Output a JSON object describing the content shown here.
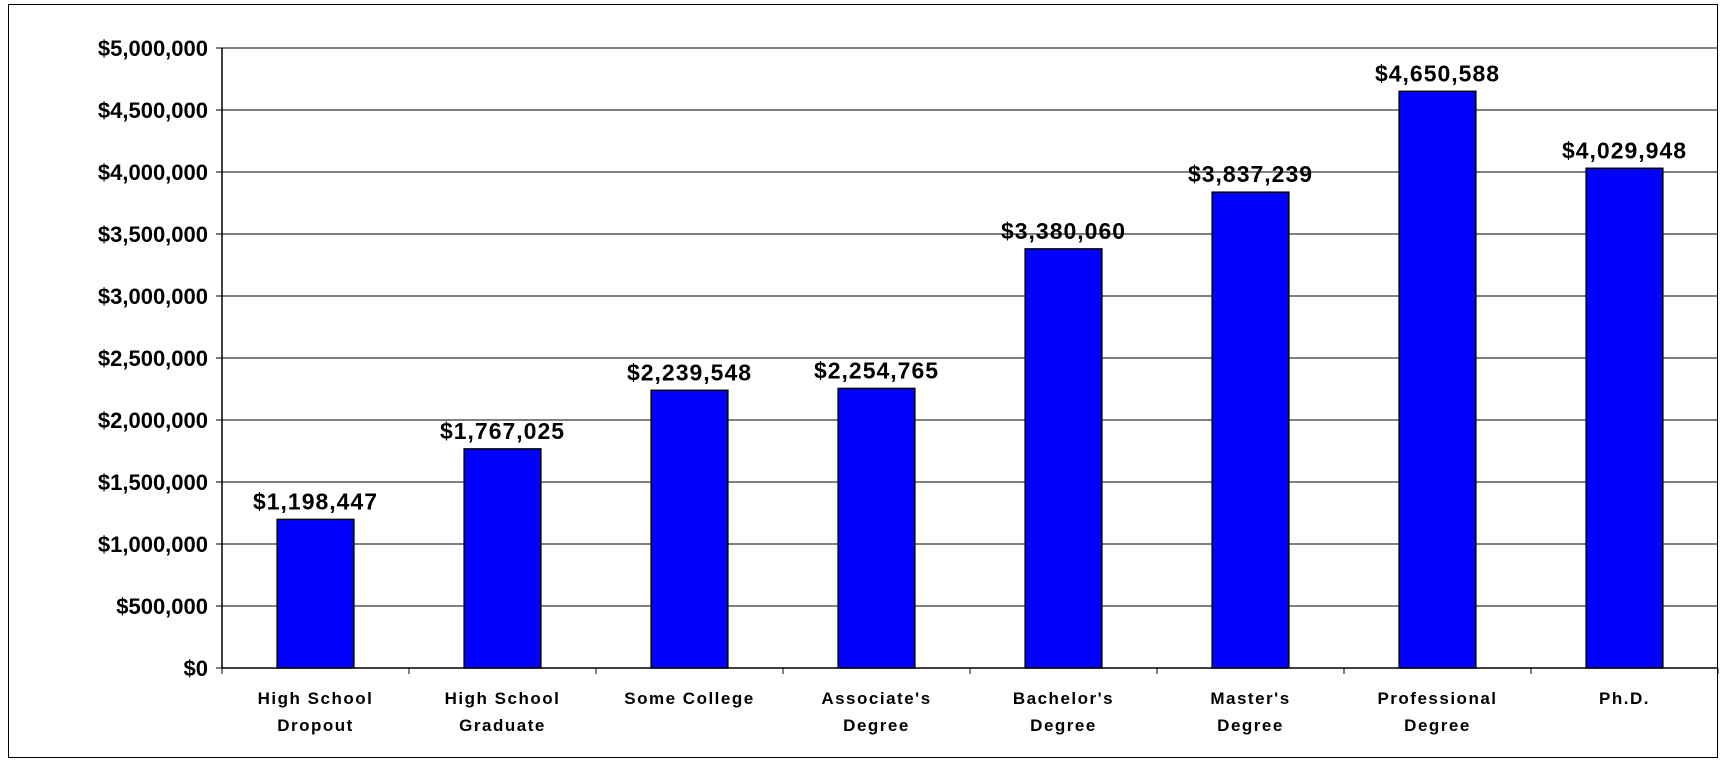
{
  "chart_data": {
    "type": "bar",
    "title": "",
    "xlabel": "",
    "ylabel": "",
    "categories": [
      [
        "High School",
        "Dropout"
      ],
      [
        "High School",
        "Graduate"
      ],
      [
        "Some College"
      ],
      [
        "Associate's",
        "Degree"
      ],
      [
        "Bachelor's",
        "Degree"
      ],
      [
        "Master's",
        "Degree"
      ],
      [
        "Professional",
        "Degree"
      ],
      [
        "Ph.D."
      ]
    ],
    "values": [
      1198447,
      1767025,
      2239548,
      2254765,
      3380060,
      3837239,
      4650588,
      4029948
    ],
    "data_labels": [
      "$1,198,447",
      "$1,767,025",
      "$2,239,548",
      "$2,254,765",
      "$3,380,060",
      "$3,837,239",
      "$4,650,588",
      "$4,029,948"
    ],
    "ylim": [
      0,
      5000000
    ],
    "y_ticks": [
      0,
      500000,
      1000000,
      1500000,
      2000000,
      2500000,
      3000000,
      3500000,
      4000000,
      4500000,
      5000000
    ],
    "y_tick_labels": [
      "$0",
      "$500,000",
      "$1,000,000",
      "$1,500,000",
      "$2,000,000",
      "$2,500,000",
      "$3,000,000",
      "$3,500,000",
      "$4,000,000",
      "$4,500,000",
      "$5,000,000"
    ],
    "grid": true,
    "legend": "none",
    "bar_color": "#0000FF",
    "bar_edge_color": "#000000"
  }
}
